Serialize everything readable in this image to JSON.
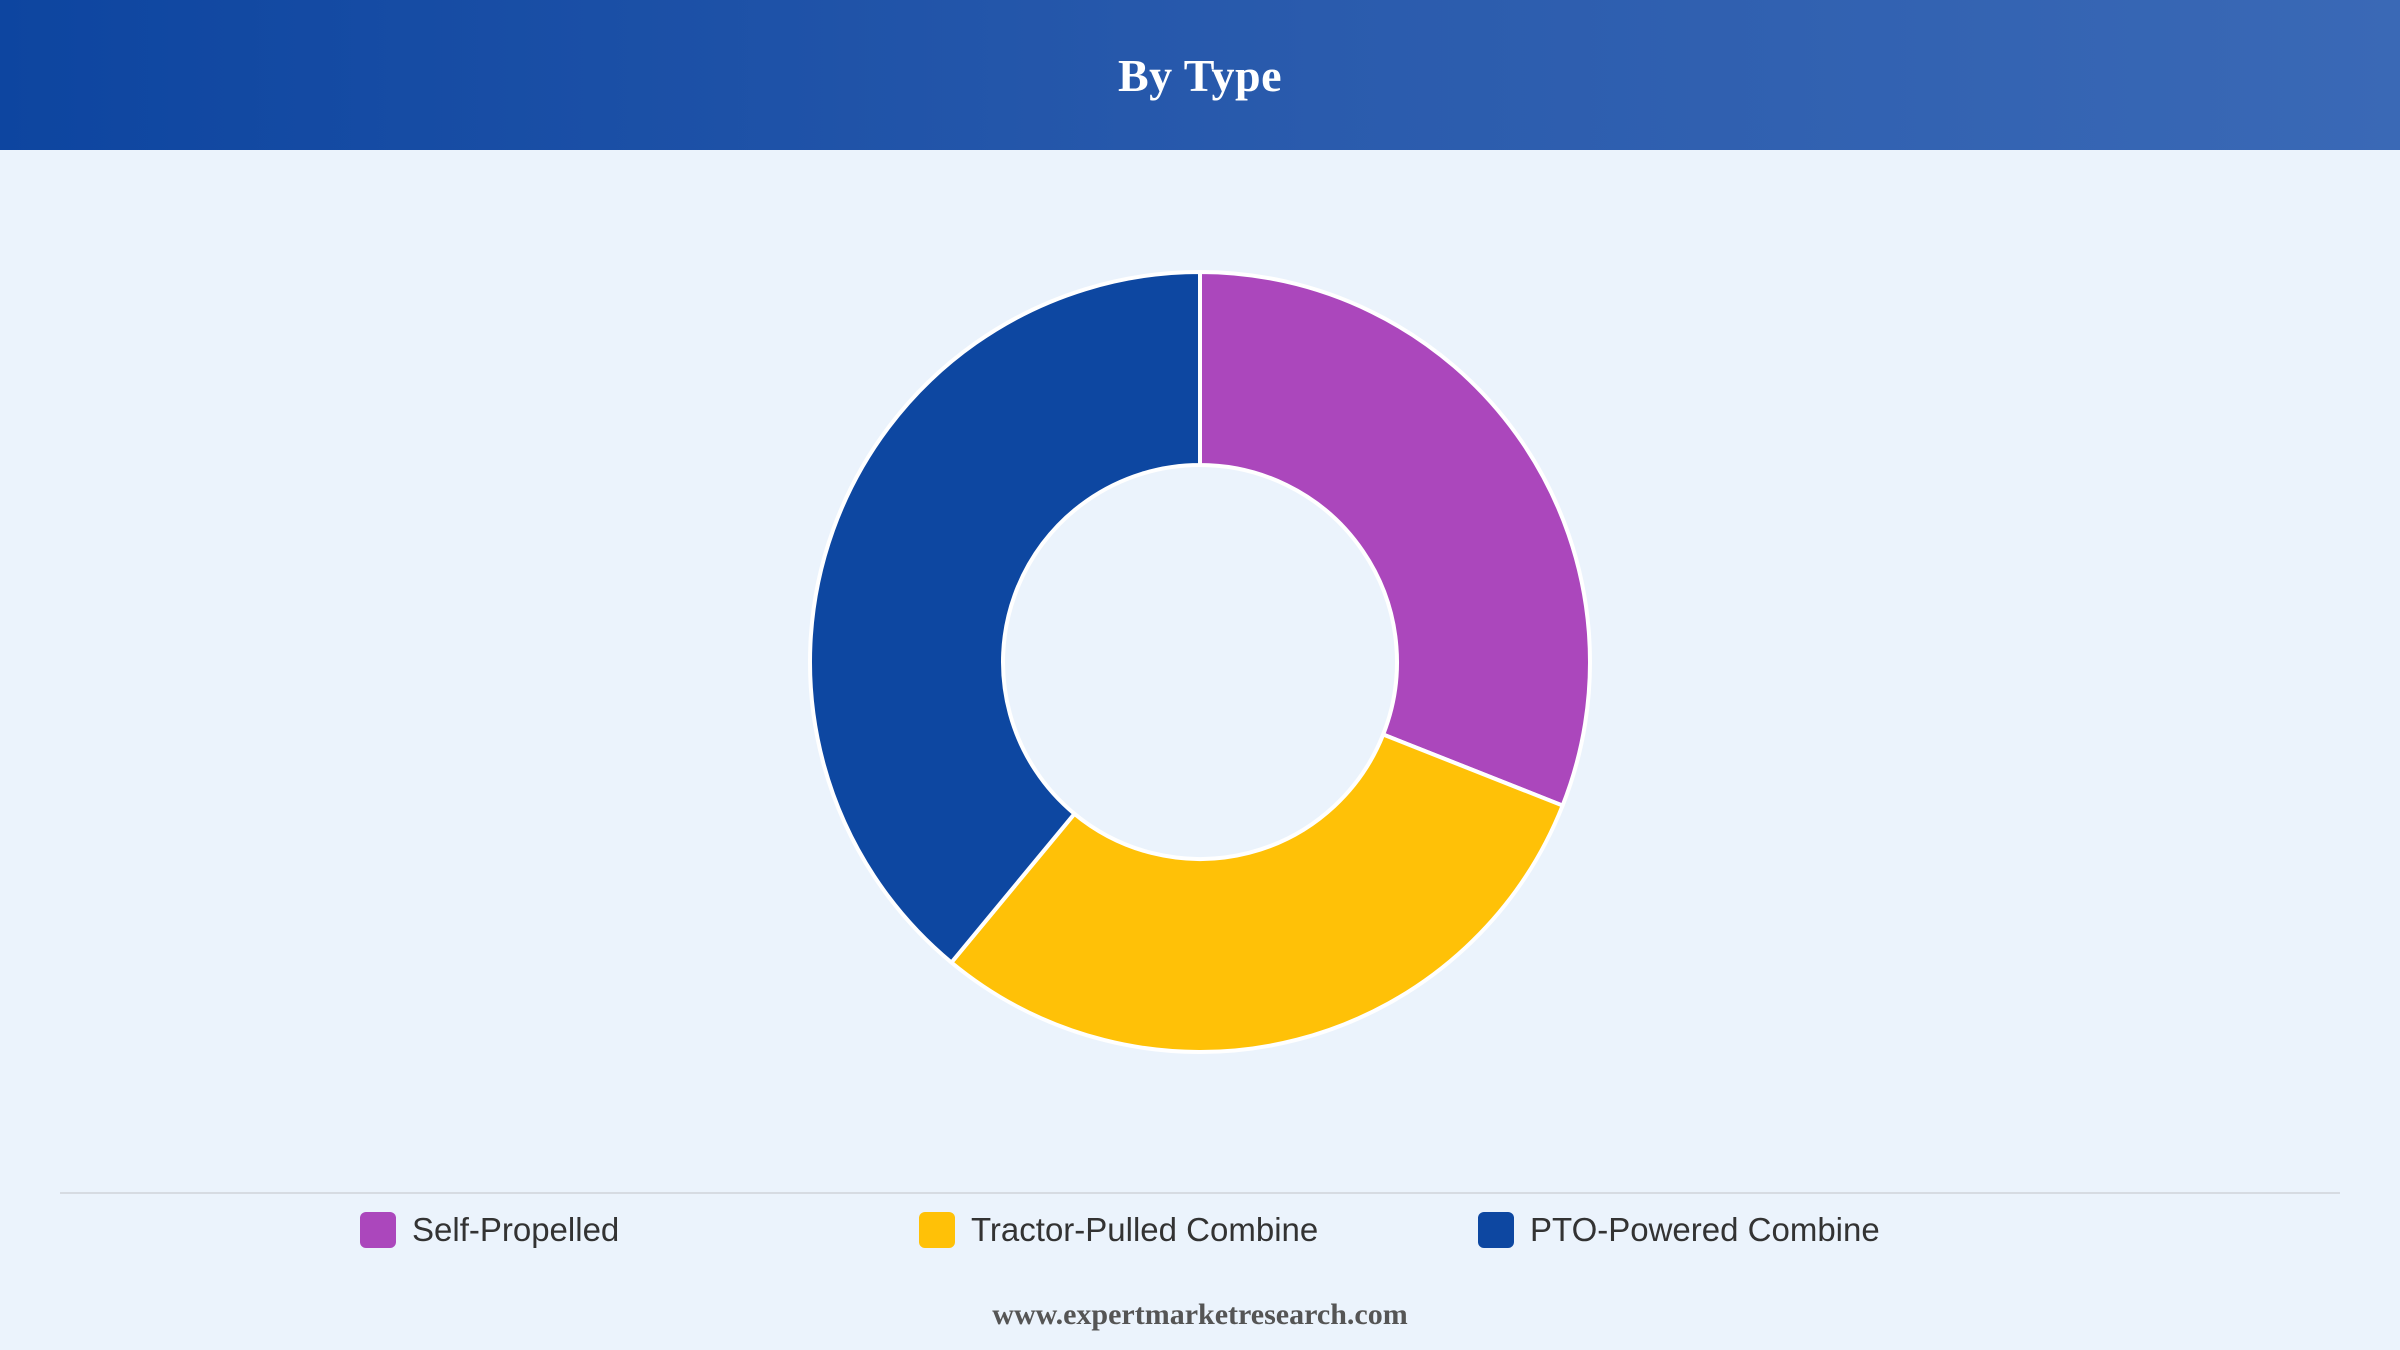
{
  "header": {
    "title": "By Type"
  },
  "chart_data": {
    "type": "pie",
    "variant": "donut",
    "title": "By Type",
    "categories": [
      "Self-Propelled",
      "Tractor-Pulled Combine",
      "PTO-Powered Combine"
    ],
    "values": [
      31,
      30,
      39
    ],
    "colors": [
      "#ab47bc",
      "#ffc107",
      "#0d47a1"
    ],
    "legend_position": "bottom"
  },
  "footer": {
    "source": "www.expertmarketresearch.com"
  }
}
